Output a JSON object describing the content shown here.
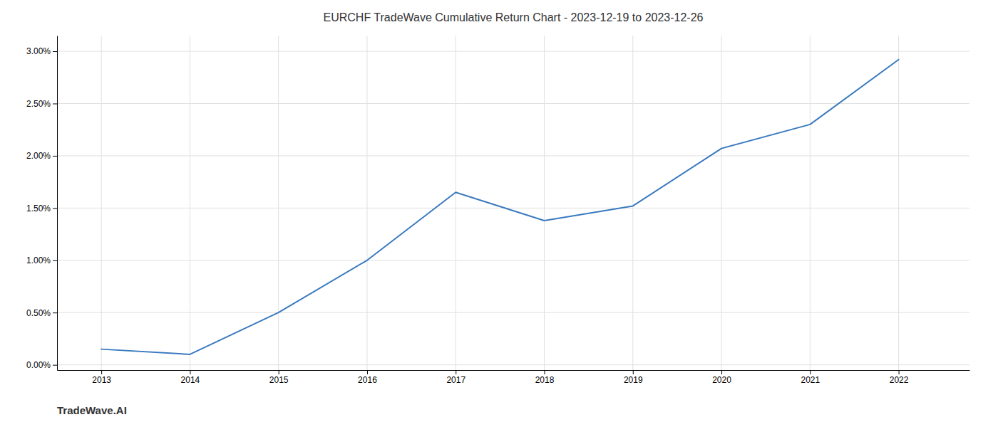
{
  "chart_data": {
    "type": "line",
    "title": "EURCHF TradeWave Cumulative Return Chart - 2023-12-19 to 2023-12-26",
    "annotations": [
      "TradeWave.AI"
    ],
    "x": [
      2013,
      2014,
      2015,
      2016,
      2017,
      2018,
      2019,
      2020,
      2021,
      2022
    ],
    "values": [
      0.0015,
      0.001,
      0.005,
      0.01,
      0.0165,
      0.0138,
      0.0152,
      0.0207,
      0.023,
      0.0292
    ],
    "color": "#3a7abf",
    "xlim": [
      2012.5,
      2022.8
    ],
    "xticks": [
      2013,
      2014,
      2015,
      2016,
      2017,
      2018,
      2019,
      2020,
      2021,
      2022
    ],
    "ylim": [
      -0.0005,
      0.0315
    ],
    "yticks": [
      {
        "value": 0.0,
        "label": "0.00%"
      },
      {
        "value": 0.005,
        "label": "0.50%"
      },
      {
        "value": 0.01,
        "label": "1.00%"
      },
      {
        "value": 0.015,
        "label": "1.50%"
      },
      {
        "value": 0.02,
        "label": "2.00%"
      },
      {
        "value": 0.025,
        "label": "2.50%"
      },
      {
        "value": 0.03,
        "label": "3.00%"
      }
    ],
    "grid": true
  }
}
